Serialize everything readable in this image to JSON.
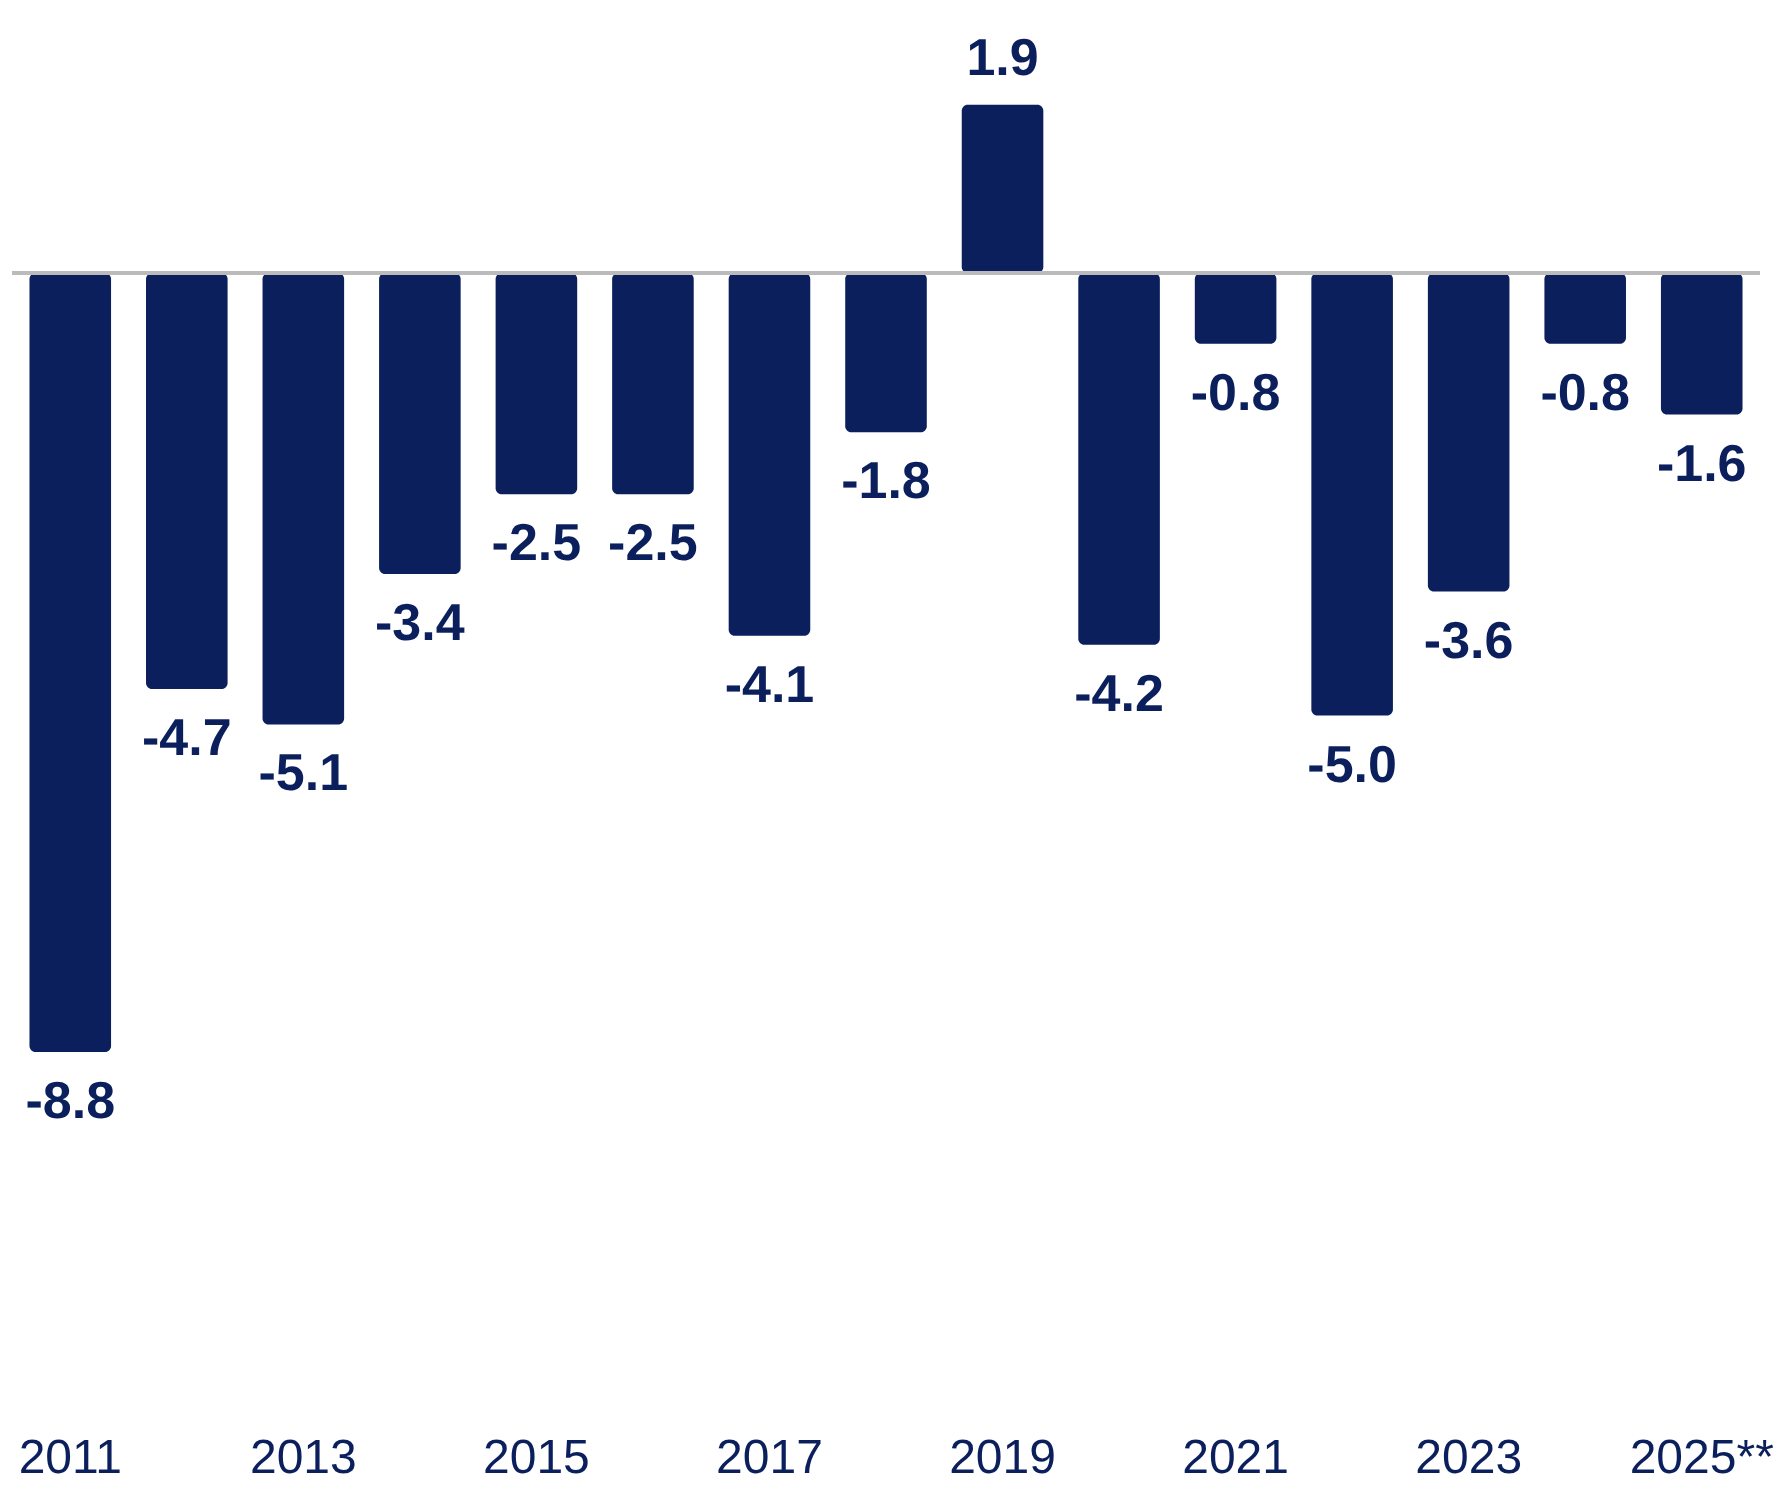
{
  "chart_data": {
    "type": "bar",
    "categories": [
      "2011",
      null,
      "2013",
      null,
      "2015",
      null,
      "2017",
      null,
      "2019",
      null,
      "2021",
      null,
      "2023",
      null,
      "2025**"
    ],
    "values": [
      -8.8,
      -4.7,
      -5.1,
      -3.4,
      -2.5,
      -2.5,
      -4.1,
      -1.8,
      1.9,
      -4.2,
      -0.8,
      -5.0,
      -3.6,
      -0.8,
      -1.6
    ],
    "value_labels": [
      "-8.8",
      "-4.7",
      "-5.1",
      "-3.4",
      "-2.5",
      "-2.5",
      "-4.1",
      "-1.8",
      "1.9",
      "-4.2",
      "-0.8",
      "-5.0",
      "-3.6",
      "-0.8",
      "-1.6"
    ],
    "color": "#0b1f5c",
    "tick_labels": "x"
  }
}
